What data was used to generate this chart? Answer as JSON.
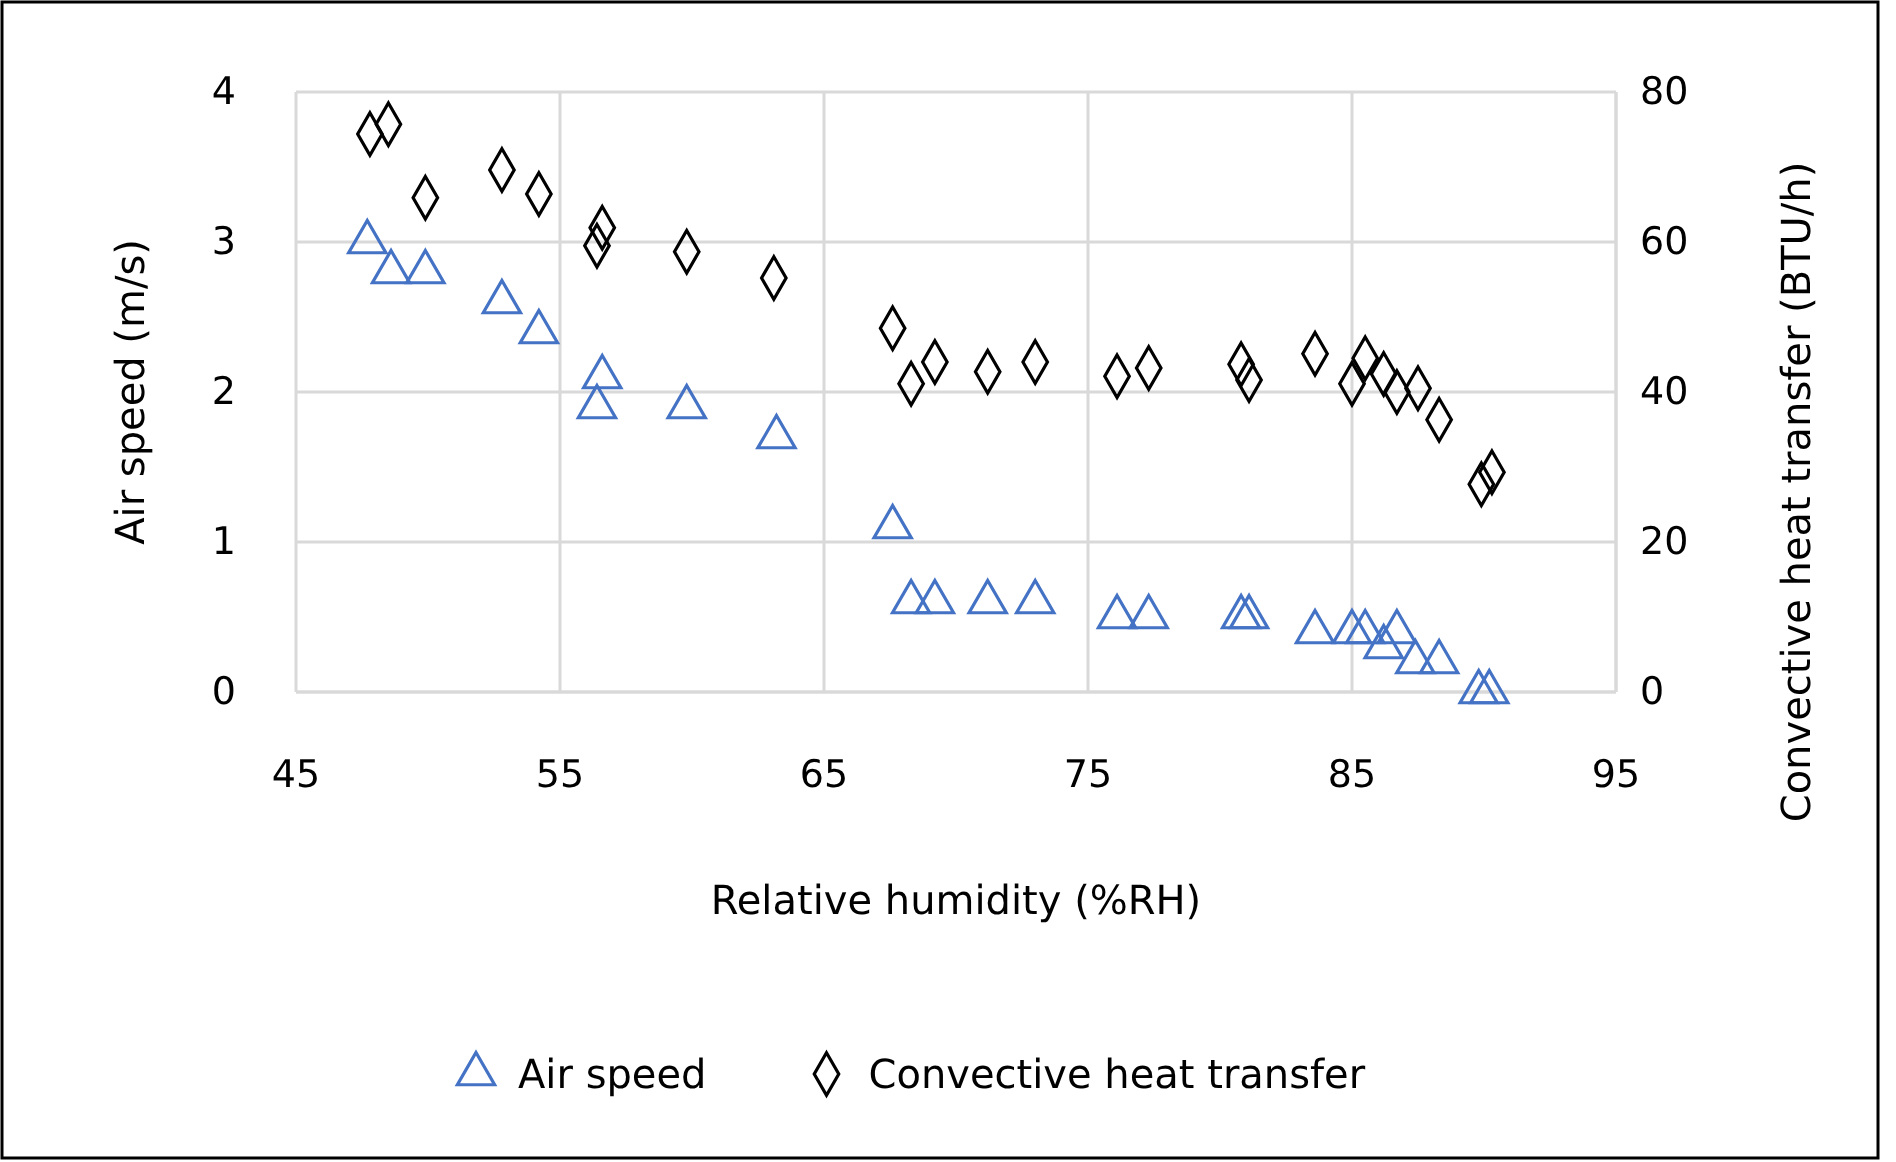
{
  "chart_data": {
    "type": "scatter",
    "xlabel": "Relative humidity (%RH)",
    "ylabel": "Air speed (m/s)",
    "y2label": "Convective heat transfer (BTU/h)",
    "xlim": [
      45,
      95
    ],
    "xticks": [
      45,
      55,
      65,
      75,
      85,
      95
    ],
    "ylim": [
      0,
      4
    ],
    "yticks": [
      0,
      1,
      2,
      3,
      4
    ],
    "y2lim": [
      0,
      80
    ],
    "y2ticks": [
      0,
      20,
      40,
      60,
      80
    ],
    "grid": true,
    "legend": "bottom",
    "series": [
      {
        "name": "Air speed",
        "color": "#4472c4",
        "marker": "triangle",
        "x": [
          47.7,
          48.6,
          49.9,
          52.8,
          54.2,
          56.6,
          56.4,
          59.8,
          63.2,
          67.6,
          68.3,
          69.2,
          71.2,
          73.0,
          76.1,
          77.3,
          80.8,
          81.1,
          83.6,
          85.0,
          85.5,
          86.2,
          86.7,
          87.4,
          88.3,
          89.8,
          90.2
        ],
        "values": [
          3.0,
          2.8,
          2.8,
          2.6,
          2.4,
          2.1,
          1.9,
          1.9,
          1.7,
          1.1,
          0.6,
          0.6,
          0.6,
          0.6,
          0.5,
          0.5,
          0.5,
          0.5,
          0.4,
          0.4,
          0.4,
          0.3,
          0.4,
          0.2,
          0.2,
          0.0,
          0.0
        ]
      },
      {
        "name": "Convective heat transfer",
        "color": "#000000",
        "marker": "diamond",
        "axis": "y2",
        "x": [
          47.8,
          48.5,
          49.9,
          52.8,
          54.2,
          56.6,
          56.4,
          59.8,
          63.1,
          67.6,
          68.3,
          69.2,
          71.2,
          73.0,
          76.1,
          77.3,
          80.8,
          81.1,
          83.6,
          85.0,
          85.5,
          86.2,
          86.7,
          87.5,
          88.3,
          89.9,
          90.3
        ],
        "values": [
          74.4,
          75.7,
          65.9,
          69.6,
          66.4,
          61.9,
          59.5,
          58.7,
          55.2,
          48.5,
          41.1,
          44.0,
          42.7,
          44.0,
          42.1,
          43.2,
          43.7,
          41.6,
          45.1,
          41.1,
          44.5,
          42.4,
          40.0,
          40.5,
          36.3,
          27.7,
          29.3
        ]
      }
    ]
  }
}
